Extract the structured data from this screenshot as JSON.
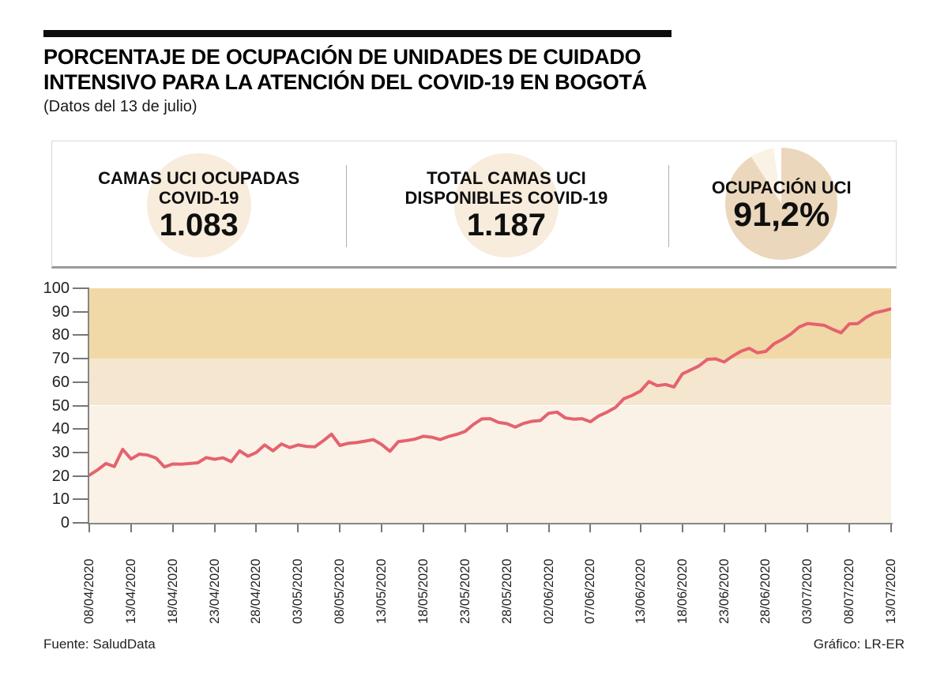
{
  "header": {
    "title_line1": "PORCENTAJE DE OCUPACIÓN DE UNIDADES DE CUIDADO",
    "title_line2": "INTENSIVO PARA LA ATENCIÓN DEL COVID-19 EN BOGOTÁ",
    "subtitle": "(Datos del 13 de julio)"
  },
  "stats": [
    {
      "label_line1": "CAMAS UCI OCUPADAS",
      "label_line2": "COVID-19",
      "value": "1.083"
    },
    {
      "label_line1": "TOTAL CAMAS UCI",
      "label_line2": "DISPONIBLES COVID-19",
      "value": "1.187"
    },
    {
      "label_line1": "OCUPACIÓN UCI",
      "value": "91,2%",
      "pie_occupied_pct": 91.2
    }
  ],
  "footer": {
    "source": "Fuente: SaludData",
    "credit": "Gráfico: LR-ER"
  },
  "colors": {
    "top_bar": "#0d0d0d",
    "stat_circle": "#f8ecdc",
    "pie_occupied": "#ebd7bb",
    "pie_free": "#faf2e4",
    "line": "#e5626f",
    "band_0_50": "#faf2e6",
    "band_50_70": "#f5e6d0",
    "band_70_100": "#f0d9a7",
    "axis": "#868686"
  },
  "chart_data": {
    "type": "line",
    "title": "",
    "xlabel": "",
    "ylabel": "",
    "ylim": [
      0,
      100
    ],
    "y_ticks": [
      0,
      10,
      20,
      30,
      40,
      50,
      60,
      70,
      80,
      90,
      100
    ],
    "grid": false,
    "legend": "none",
    "line_color": "#e5626f",
    "bands": [
      {
        "from": 0,
        "to": 50,
        "color": "#faf2e6"
      },
      {
        "from": 50,
        "to": 70,
        "color": "#f5e6d0"
      },
      {
        "from": 70,
        "to": 100,
        "color": "#f0d9a7"
      }
    ],
    "x_tick_labels": [
      "08/04/2020",
      "13/04/2020",
      "18/04/2020",
      "23/04/2020",
      "28/04/2020",
      "03/05/2020",
      "08/05/2020",
      "13/05/2020",
      "18/05/2020",
      "23/05/2020",
      "28/05/2020",
      "02/06/2020",
      "07/06/2020",
      "13/06/2020",
      "18/06/2020",
      "23/06/2020",
      "28/06/2020",
      "03/07/2020",
      "08/07/2020",
      "13/07/2020"
    ],
    "x": [
      "08/04/2020",
      "09/04/2020",
      "10/04/2020",
      "11/04/2020",
      "12/04/2020",
      "13/04/2020",
      "14/04/2020",
      "15/04/2020",
      "16/04/2020",
      "17/04/2020",
      "18/04/2020",
      "19/04/2020",
      "20/04/2020",
      "21/04/2020",
      "22/04/2020",
      "23/04/2020",
      "24/04/2020",
      "25/04/2020",
      "26/04/2020",
      "27/04/2020",
      "28/04/2020",
      "29/04/2020",
      "30/04/2020",
      "01/05/2020",
      "02/05/2020",
      "03/05/2020",
      "04/05/2020",
      "05/05/2020",
      "06/05/2020",
      "07/05/2020",
      "08/05/2020",
      "09/05/2020",
      "10/05/2020",
      "11/05/2020",
      "12/05/2020",
      "13/05/2020",
      "14/05/2020",
      "15/05/2020",
      "16/05/2020",
      "17/05/2020",
      "18/05/2020",
      "19/05/2020",
      "20/05/2020",
      "21/05/2020",
      "22/05/2020",
      "23/05/2020",
      "24/05/2020",
      "25/05/2020",
      "26/05/2020",
      "27/05/2020",
      "28/05/2020",
      "29/05/2020",
      "30/05/2020",
      "31/05/2020",
      "01/06/2020",
      "02/06/2020",
      "03/06/2020",
      "04/06/2020",
      "05/06/2020",
      "06/06/2020",
      "07/06/2020",
      "08/06/2020",
      "09/06/2020",
      "10/06/2020",
      "11/06/2020",
      "12/06/2020",
      "13/06/2020",
      "14/06/2020",
      "15/06/2020",
      "16/06/2020",
      "17/06/2020",
      "18/06/2020",
      "19/06/2020",
      "20/06/2020",
      "21/06/2020",
      "22/06/2020",
      "23/06/2020",
      "24/06/2020",
      "25/06/2020",
      "26/06/2020",
      "27/06/2020",
      "28/06/2020",
      "29/06/2020",
      "30/06/2020",
      "01/07/2020",
      "02/07/2020",
      "03/07/2020",
      "04/07/2020",
      "05/07/2020",
      "06/07/2020",
      "07/07/2020",
      "08/07/2020",
      "09/07/2020",
      "10/07/2020",
      "11/07/2020",
      "12/07/2020",
      "13/07/2020"
    ],
    "values": [
      20.3,
      22.6,
      25.3,
      24.0,
      31.3,
      27.2,
      29.3,
      28.9,
      27.6,
      23.8,
      25.1,
      25.0,
      25.3,
      25.6,
      27.8,
      27.1,
      27.7,
      26.1,
      30.7,
      28.4,
      30.0,
      33.2,
      30.7,
      33.6,
      32.1,
      33.2,
      32.6,
      32.4,
      34.9,
      37.8,
      33.0,
      33.9,
      34.2,
      34.8,
      35.5,
      33.4,
      30.5,
      34.6,
      35.1,
      35.7,
      36.9,
      36.5,
      35.5,
      36.8,
      37.7,
      39.0,
      42.0,
      44.3,
      44.4,
      42.8,
      42.3,
      40.8,
      42.4,
      43.3,
      43.6,
      46.7,
      47.2,
      44.7,
      44.2,
      44.4,
      43.1,
      45.6,
      47.2,
      49.2,
      52.9,
      54.3,
      56.2,
      60.2,
      58.5,
      59.0,
      57.9,
      63.5,
      65.2,
      66.9,
      69.7,
      69.9,
      68.6,
      71.0,
      73.1,
      74.4,
      72.5,
      73.1,
      76.4,
      78.2,
      80.5,
      83.5,
      85.0,
      84.6,
      84.2,
      82.5,
      81.0,
      84.8,
      84.9,
      87.6,
      89.5,
      90.3,
      91.2
    ]
  }
}
